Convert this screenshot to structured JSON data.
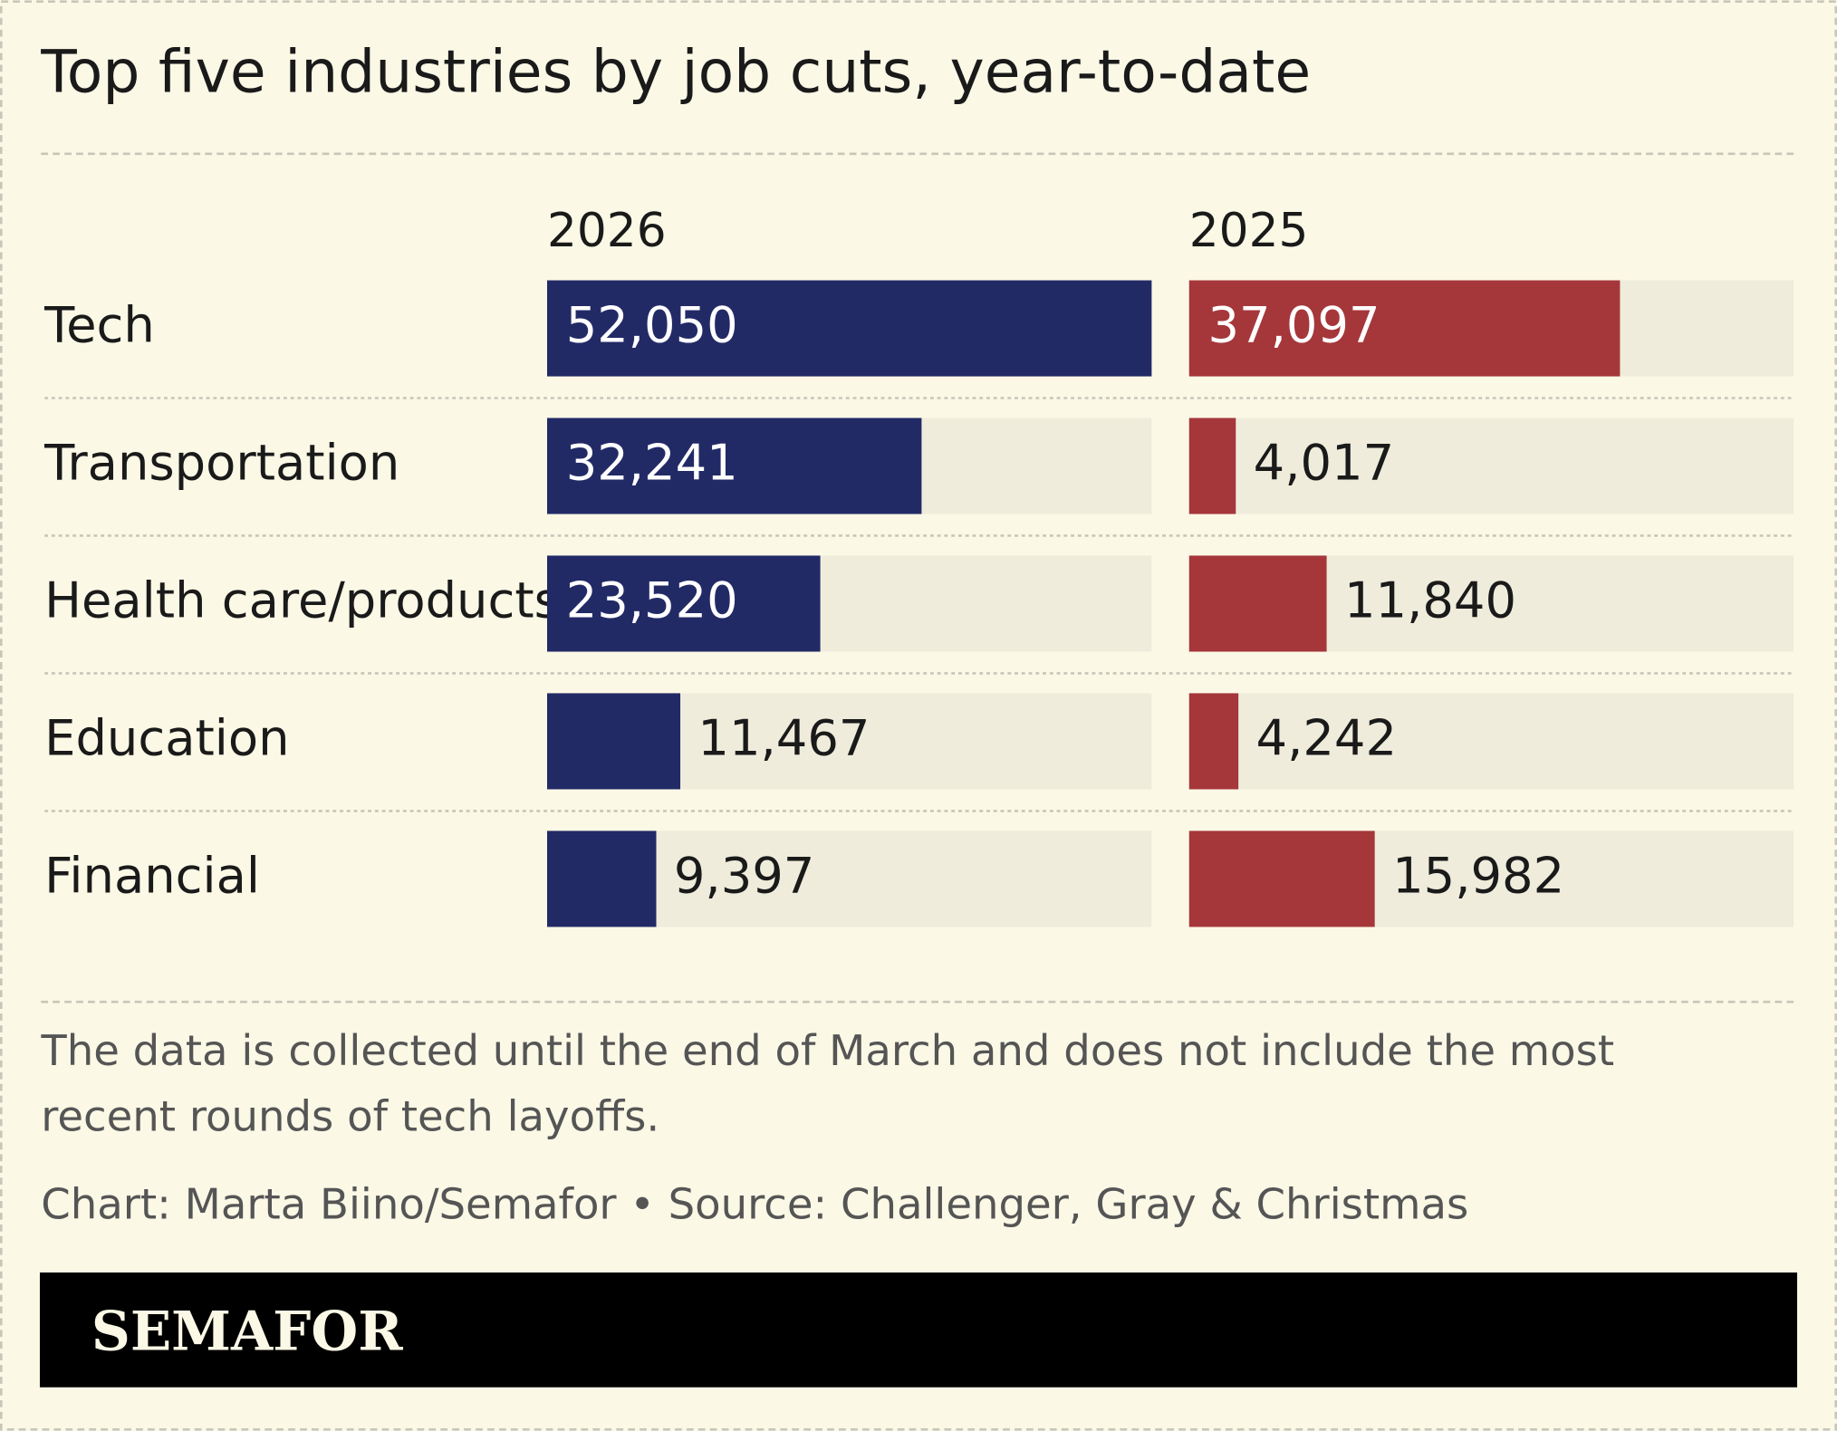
{
  "chart_data": {
    "type": "bar",
    "title": "Top five industries by job cuts, year-to-date",
    "categories": [
      "Tech",
      "Transportation",
      "Health care/products",
      "Education",
      "Financial"
    ],
    "series": [
      {
        "name": "2026",
        "color": "#222a66",
        "values": [
          52050,
          32241,
          23520,
          11467,
          9397
        ],
        "value_labels": [
          "52,050",
          "32,241",
          "23,520",
          "11,467",
          "9,397"
        ]
      },
      {
        "name": "2025",
        "color": "#a5373b",
        "values": [
          37097,
          4017,
          11840,
          4242,
          15982
        ],
        "value_labels": [
          "37,097",
          "4,017",
          "11,840",
          "4,242",
          "15,982"
        ]
      }
    ],
    "xlim": [
      0,
      52050
    ],
    "note": "The data is collected until the end of March and does not include the most recent rounds of tech layoffs.",
    "source": "Chart: Marta Biino/Semafor • Source: Challenger, Gray & Christmas",
    "logo": "SEMAFOR"
  }
}
